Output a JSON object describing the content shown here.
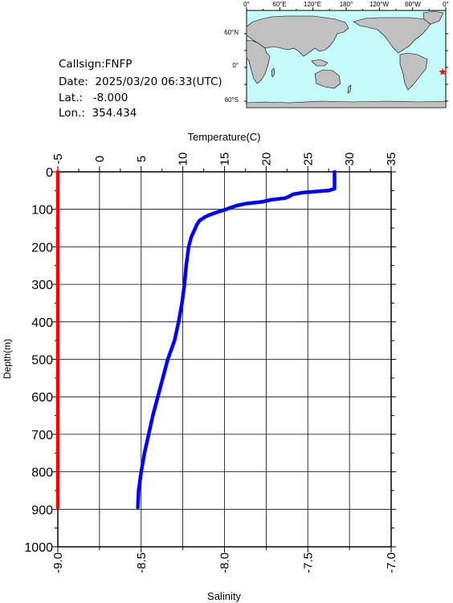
{
  "info": {
    "callsign": "Callsign:FNFP",
    "date": "Date:  2025/03/20 06:33(UTC)",
    "lat": "Lat.:   -8.000",
    "lon": "Lon.:  354.434"
  },
  "map": {
    "lon_labels": [
      "0°",
      "60°E",
      "120°E",
      "180°",
      "120°W",
      "60°W",
      "0°"
    ],
    "lat_labels": [
      "60°N",
      "0°",
      "60°S"
    ],
    "ocean_color": "#c6fbfc",
    "land_color": "#c0c0c0",
    "marker": {
      "lon": 354.434,
      "lat": -8.0,
      "color": "#ff0000",
      "shape": "star"
    }
  },
  "chart_data": {
    "type": "line",
    "ylabel": "Depth(m)",
    "ylim": [
      0,
      1000
    ],
    "y_inverted": true,
    "yticks": [
      "0",
      "100",
      "200",
      "300",
      "400",
      "500",
      "600",
      "700",
      "800",
      "900",
      "1000"
    ],
    "top_axis": {
      "label": "Temperature(C)",
      "lim": [
        -5,
        35
      ],
      "ticks": [
        "-5",
        "0",
        "5",
        "10",
        "15",
        "20",
        "25",
        "30",
        "35"
      ]
    },
    "bottom_axis": {
      "label": "Salinity",
      "lim": [
        -9.0,
        -7.0
      ],
      "ticks": [
        "-9.0",
        "-8.5",
        "-8.0",
        "-7.5",
        "-7.0"
      ]
    },
    "grid": true,
    "series": [
      {
        "axis": "temperature",
        "color": "#0000ff",
        "depth": [
          0,
          30,
          45,
          50,
          55,
          60,
          65,
          70,
          75,
          80,
          85,
          90,
          95,
          100,
          105,
          110,
          115,
          120,
          130,
          140,
          150,
          175,
          200,
          250,
          300,
          350,
          400,
          450,
          500,
          550,
          600,
          650,
          700,
          750,
          800,
          850,
          895
        ],
        "values": [
          28.2,
          28.2,
          28.2,
          27.5,
          24.5,
          23.2,
          22.8,
          22.3,
          20.5,
          19.5,
          17.5,
          16.5,
          15.8,
          15.2,
          14.5,
          13.8,
          13.2,
          12.7,
          12.0,
          11.7,
          11.5,
          11.0,
          10.7,
          10.4,
          10.2,
          9.9,
          9.5,
          9.0,
          8.2,
          7.6,
          7.0,
          6.4,
          5.9,
          5.4,
          5.0,
          4.7,
          4.6
        ]
      },
      {
        "axis": "salinity",
        "color": "#ff0000",
        "depth": [
          0,
          895
        ],
        "values": [
          -9.0,
          -9.0
        ]
      }
    ]
  }
}
